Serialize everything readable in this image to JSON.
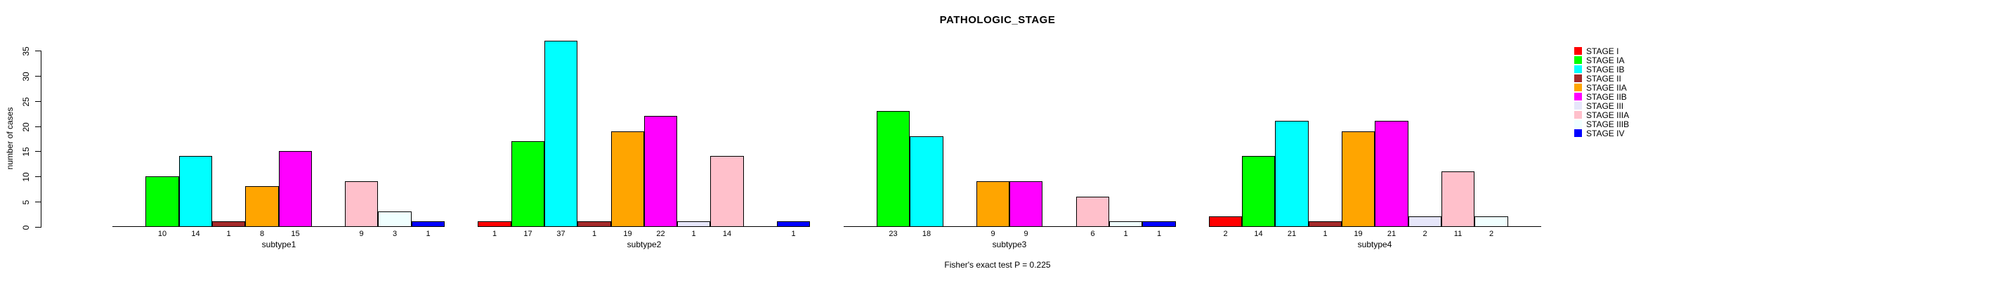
{
  "title": "PATHOLOGIC_STAGE",
  "subtitle": "Fisher's exact test P = 0.225",
  "y_axis": {
    "label": "number of cases",
    "ticks": [
      0,
      5,
      10,
      15,
      20,
      25,
      30,
      35
    ]
  },
  "chart_data": {
    "type": "bar",
    "title": "PATHOLOGIC_STAGE",
    "ylabel": "number of cases",
    "xlabel": "",
    "ylim": [
      0,
      37
    ],
    "yticks": [
      0,
      5,
      10,
      15,
      20,
      25,
      30,
      35
    ],
    "grid": false,
    "legend_position": "right",
    "annotation": "Fisher's exact test P = 0.225",
    "bar_labels": "value shown under each non-zero bar",
    "categories": [
      "subtype1",
      "subtype2",
      "subtype3",
      "subtype4"
    ],
    "series": [
      {
        "name": "STAGE I",
        "color": "#FF0000",
        "values": [
          0,
          1,
          0,
          2
        ]
      },
      {
        "name": "STAGE IA",
        "color": "#00FF00",
        "values": [
          10,
          17,
          23,
          14
        ]
      },
      {
        "name": "STAGE IB",
        "color": "#00FFFF",
        "values": [
          14,
          37,
          18,
          21
        ]
      },
      {
        "name": "STAGE II",
        "color": "#A52A2A",
        "values": [
          1,
          1,
          0,
          1
        ]
      },
      {
        "name": "STAGE IIA",
        "color": "#FFA500",
        "values": [
          8,
          19,
          9,
          19
        ]
      },
      {
        "name": "STAGE IIB",
        "color": "#FF00FF",
        "values": [
          15,
          22,
          9,
          21
        ]
      },
      {
        "name": "STAGE III",
        "color": "#E6E6FA",
        "values": [
          0,
          1,
          0,
          2
        ]
      },
      {
        "name": "STAGE IIIA",
        "color": "#FFC0CB",
        "values": [
          9,
          14,
          6,
          11
        ]
      },
      {
        "name": "STAGE IIIB",
        "color": "#F0FFFF",
        "values": [
          3,
          0,
          1,
          2
        ]
      },
      {
        "name": "STAGE IV",
        "color": "#0000FF",
        "values": [
          1,
          1,
          1,
          0
        ]
      }
    ]
  }
}
